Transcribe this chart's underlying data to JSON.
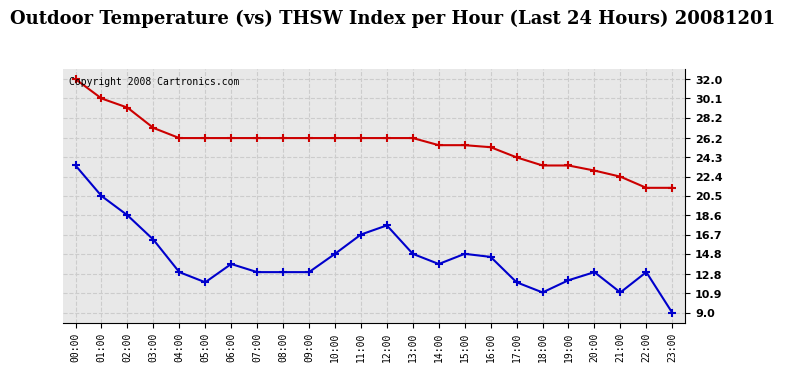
{
  "title": "Outdoor Temperature (vs) THSW Index per Hour (Last 24 Hours) 20081201",
  "copyright_text": "Copyright 2008 Cartronics.com",
  "hours": [
    "00:00",
    "01:00",
    "02:00",
    "03:00",
    "04:00",
    "05:00",
    "06:00",
    "07:00",
    "08:00",
    "09:00",
    "10:00",
    "11:00",
    "12:00",
    "13:00",
    "14:00",
    "15:00",
    "16:00",
    "17:00",
    "18:00",
    "19:00",
    "20:00",
    "21:00",
    "22:00",
    "23:00"
  ],
  "red_data": [
    32.0,
    30.1,
    29.2,
    27.2,
    26.2,
    26.2,
    26.2,
    26.2,
    26.2,
    26.2,
    26.2,
    26.2,
    26.2,
    26.2,
    25.5,
    25.5,
    25.3,
    24.3,
    23.5,
    23.5,
    23.0,
    22.4,
    21.3,
    21.3
  ],
  "blue_data": [
    23.5,
    20.5,
    18.6,
    16.2,
    13.0,
    12.0,
    13.8,
    13.0,
    13.0,
    13.0,
    14.8,
    16.7,
    17.6,
    14.8,
    13.8,
    14.8,
    14.5,
    12.0,
    11.0,
    12.2,
    13.0,
    11.0,
    13.0,
    9.0
  ],
  "y_ticks": [
    9.0,
    10.9,
    12.8,
    14.8,
    16.7,
    18.6,
    20.5,
    22.4,
    24.3,
    26.2,
    28.2,
    30.1,
    32.0
  ],
  "ylim": [
    8.0,
    33.0
  ],
  "red_color": "#cc0000",
  "blue_color": "#0000cc",
  "grid_color": "#cccccc",
  "bg_color": "#ffffff",
  "plot_bg_color": "#e8e8e8",
  "title_fontsize": 13,
  "copyright_fontsize": 7
}
